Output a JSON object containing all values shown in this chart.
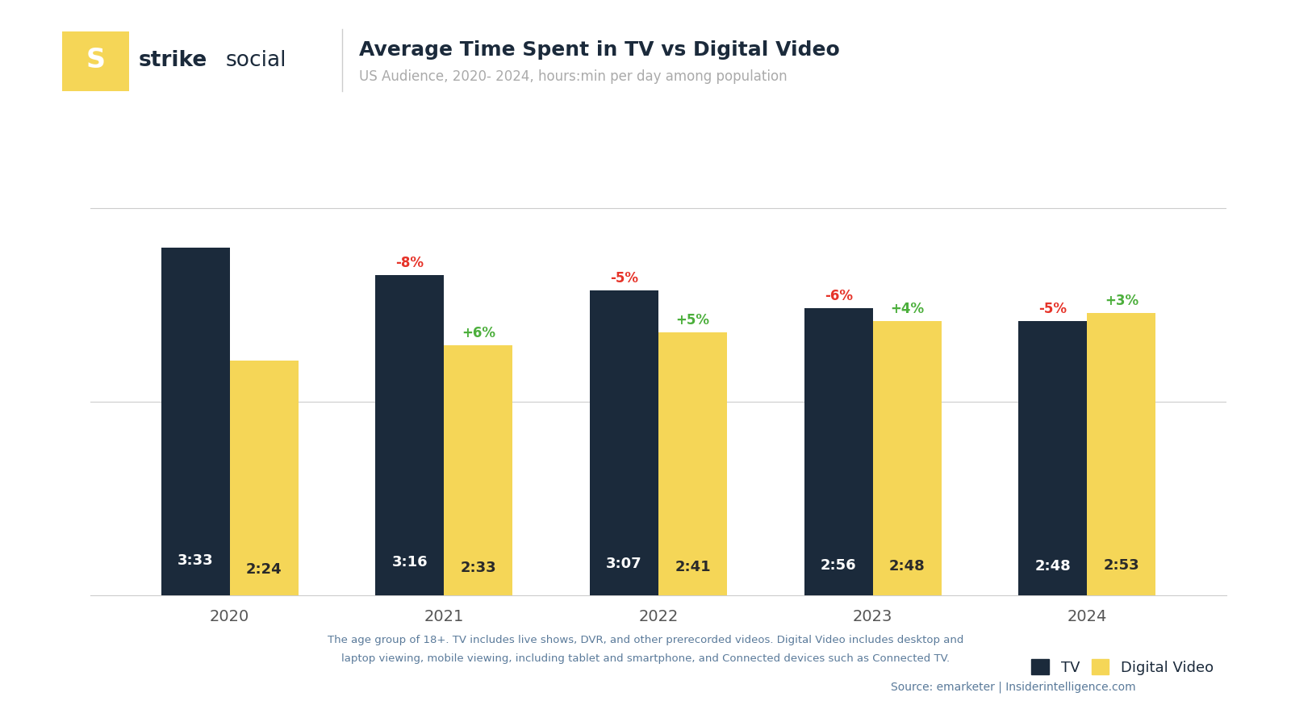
{
  "title": "Average Time Spent in TV vs Digital Video",
  "subtitle": "US Audience, 2020- 2024, hours:min per day among population",
  "years": [
    "2020",
    "2021",
    "2022",
    "2023",
    "2024"
  ],
  "tv_values": [
    3.55,
    3.267,
    3.117,
    2.933,
    2.8
  ],
  "tv_labels": [
    "3:33",
    "3:16",
    "3:07",
    "2:56",
    "2:48"
  ],
  "dv_values": [
    2.4,
    2.55,
    2.683,
    2.8,
    2.883
  ],
  "dv_labels": [
    "2:24",
    "2:33",
    "2:41",
    "2:48",
    "2:53"
  ],
  "tv_pct": [
    "",
    "-8%",
    "-5%",
    "-6%",
    "-5%"
  ],
  "dv_pct": [
    "",
    "+6%",
    "+5%",
    "+4%",
    "+3%"
  ],
  "tv_color": "#1b2a3b",
  "dv_color": "#f5d657",
  "pct_neg_color": "#e63329",
  "pct_pos_color": "#4caf3c",
  "bar_width": 0.32,
  "background_color": "#ffffff",
  "footnote_line1": "The age group of 18+. TV includes live shows, DVR, and other prerecorded videos. Digital Video includes desktop and",
  "footnote_line2": "laptop viewing, mobile viewing, including tablet and smartphone, and Connected devices such as Connected TV.",
  "source": "Source: emarketer | Insiderintelligence.com",
  "ylim": [
    0,
    4.3
  ],
  "logo_color": "#f5d657",
  "grid_color": "#cccccc"
}
